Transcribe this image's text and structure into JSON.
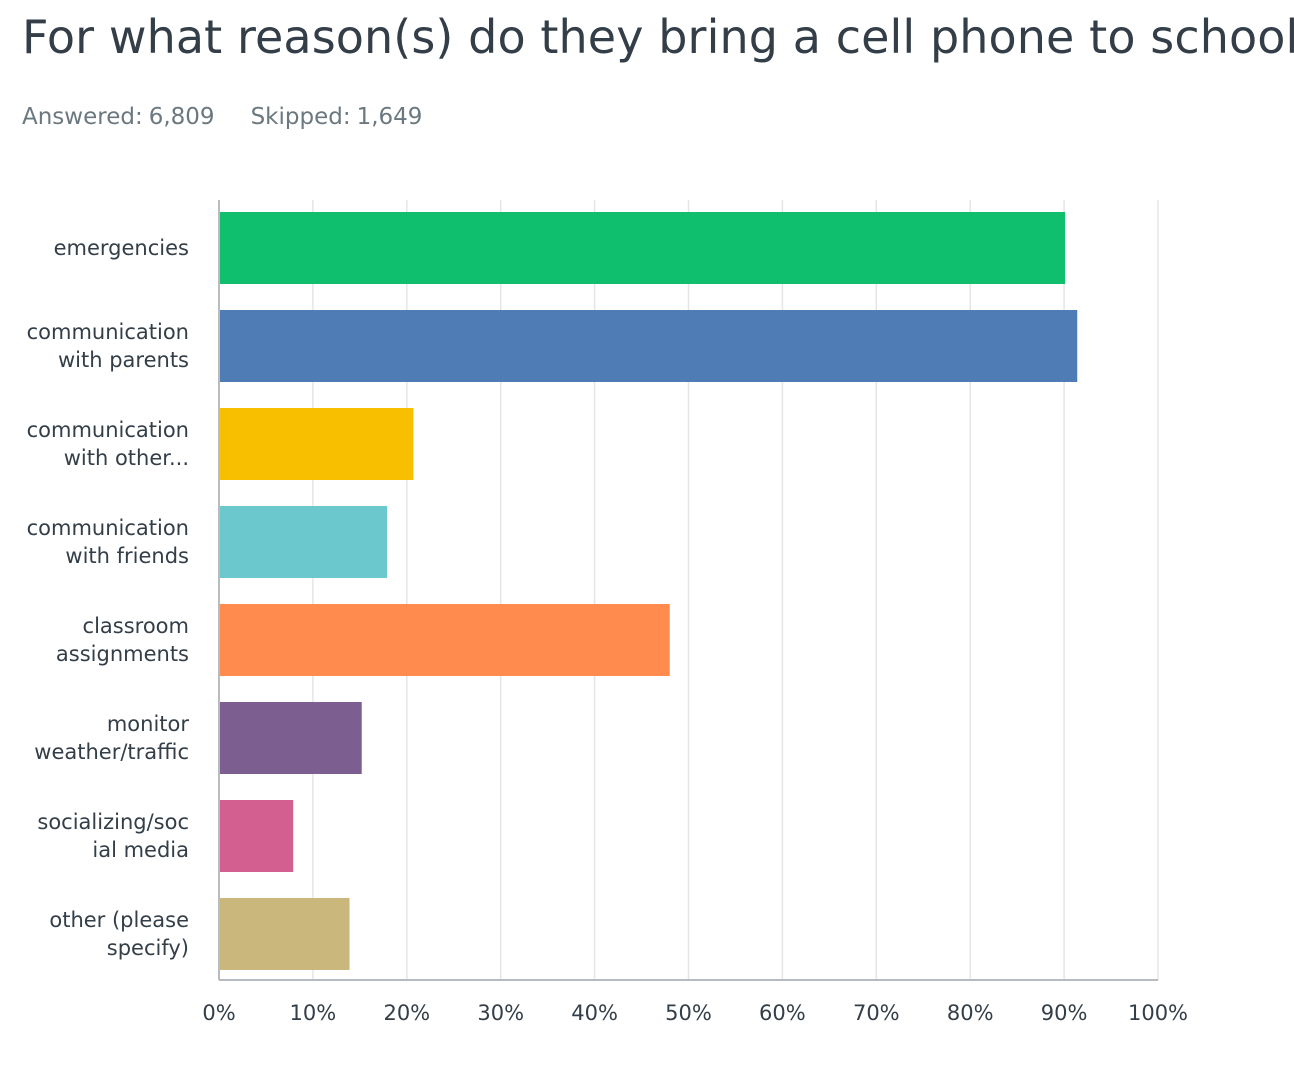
{
  "question": {
    "title": "For what reason(s) do they bring a cell phone to school?"
  },
  "stats": {
    "answered_label": "Answered:",
    "answered_value": "6,809",
    "skipped_label": "Skipped:",
    "skipped_value": "1,649"
  },
  "chart_data": {
    "type": "bar",
    "orientation": "horizontal",
    "categories": [
      [
        "emergencies"
      ],
      [
        "communication",
        "with parents"
      ],
      [
        "communication",
        "with other..."
      ],
      [
        "communication",
        "with friends"
      ],
      [
        "classroom",
        "assignments"
      ],
      [
        "monitor",
        "weather/traffic"
      ],
      [
        "socializing/soc",
        "ial media"
      ],
      [
        "other (please",
        "specify)"
      ]
    ],
    "values": [
      90.1,
      91.4,
      20.7,
      17.9,
      48.0,
      15.2,
      7.9,
      13.9
    ],
    "unit": "%",
    "xlim": [
      0,
      100
    ],
    "x_ticks": [
      "0%",
      "10%",
      "20%",
      "30%",
      "40%",
      "50%",
      "60%",
      "70%",
      "80%",
      "90%",
      "100%"
    ],
    "colors": [
      "#10bf6e",
      "#507cb6",
      "#f8bf00",
      "#6bc8cd",
      "#ff8b4f",
      "#7d5e90",
      "#d25f90",
      "#c9b77b"
    ],
    "grid": true,
    "legend": "none"
  }
}
